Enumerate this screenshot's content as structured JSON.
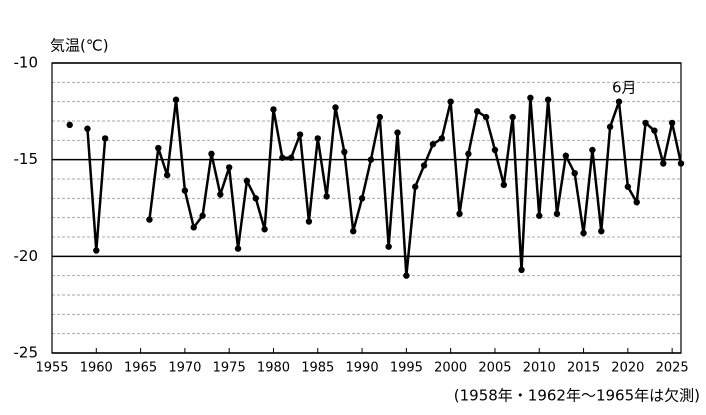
{
  "chart_data": {
    "type": "line",
    "y_label": "気温(℃)",
    "annotation": "6月",
    "note": "(1958年・1962年～1965年は欠測)",
    "x": [
      1957,
      1958,
      1959,
      1960,
      1961,
      1962,
      1963,
      1964,
      1965,
      1966,
      1967,
      1968,
      1969,
      1970,
      1971,
      1972,
      1973,
      1974,
      1975,
      1976,
      1977,
      1978,
      1979,
      1980,
      1981,
      1982,
      1983,
      1984,
      1985,
      1986,
      1987,
      1988,
      1989,
      1990,
      1991,
      1992,
      1993,
      1994,
      1995,
      1996,
      1997,
      1998,
      1999,
      2000,
      2001,
      2002,
      2003,
      2004,
      2005,
      2006,
      2007,
      2008,
      2009,
      2010,
      2011,
      2012,
      2013,
      2014,
      2015,
      2016,
      2017,
      2018,
      2019,
      2020,
      2021,
      2022,
      2023,
      2024,
      2025,
      2026
    ],
    "series": [
      {
        "color": "#000000",
        "values": [
          -13.2,
          null,
          -13.4,
          -19.7,
          -13.9,
          null,
          null,
          null,
          null,
          -18.1,
          -14.4,
          -15.8,
          -11.9,
          -16.6,
          -18.5,
          -17.9,
          -14.7,
          -16.8,
          -15.4,
          -19.6,
          -16.1,
          -17.0,
          -18.6,
          -12.4,
          -14.9,
          -14.9,
          -13.7,
          -18.2,
          -13.9,
          -16.9,
          -12.3,
          -14.6,
          -18.7,
          -17.0,
          -15.0,
          -12.8,
          -19.5,
          -13.6,
          -21.0,
          -16.4,
          -15.3,
          -14.2,
          -13.9,
          -12.0,
          -17.8,
          -14.7,
          -12.5,
          -12.8,
          -14.5,
          -16.3,
          -12.8,
          -20.7,
          -11.8,
          -17.9,
          -11.9,
          -17.8,
          -14.8,
          -15.7,
          -18.8,
          -14.5,
          -18.7,
          -13.3,
          -12.0,
          -16.4,
          -17.2,
          -13.1,
          -13.5,
          -15.2,
          -13.1,
          -15.2
        ]
      }
    ],
    "xlim": [
      1955,
      2026
    ],
    "xticks": [
      1955,
      1960,
      1965,
      1970,
      1975,
      1980,
      1985,
      1990,
      1995,
      2000,
      2005,
      2010,
      2015,
      2020,
      2025
    ],
    "ylim": [
      -25,
      -10
    ],
    "yticks": [
      -25,
      -20,
      -15,
      -10
    ],
    "minor_yticks": [
      -24,
      -23,
      -22,
      -21,
      -19,
      -18,
      -17,
      -16,
      -14,
      -13,
      -12,
      -11
    ],
    "grid": true
  }
}
